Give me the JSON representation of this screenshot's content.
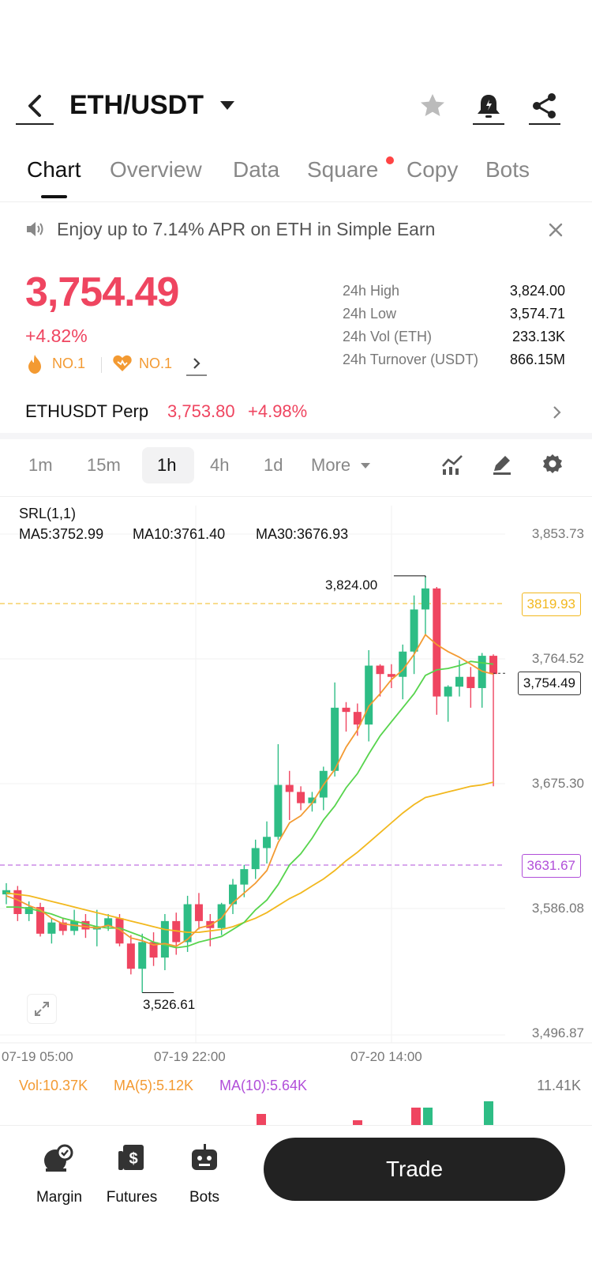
{
  "header": {
    "pair": "ETH/USDT"
  },
  "tabs": [
    {
      "label": "Chart",
      "active": true
    },
    {
      "label": "Overview"
    },
    {
      "label": "Data"
    },
    {
      "label": "Square"
    },
    {
      "label": "Copy"
    },
    {
      "label": "Bots"
    }
  ],
  "banner": {
    "text": "Enjoy up to 7.14% APR on ETH in Simple Earn"
  },
  "ticker": {
    "price": "3,754.49",
    "change": "+4.82%",
    "rank1": "NO.1",
    "rank2": "NO.1"
  },
  "stats": [
    {
      "label": "24h High",
      "value": "3,824.00"
    },
    {
      "label": "24h Low",
      "value": "3,574.71"
    },
    {
      "label": "24h Vol (ETH)",
      "value": "233.13K"
    },
    {
      "label": "24h Turnover (USDT)",
      "value": "866.15M"
    }
  ],
  "perp": {
    "name": "ETHUSDT Perp",
    "price": "3,753.80",
    "change": "+4.98%"
  },
  "timeframes": [
    {
      "label": "1m"
    },
    {
      "label": "15m"
    },
    {
      "label": "1h",
      "active": true
    },
    {
      "label": "4h"
    },
    {
      "label": "1d"
    },
    {
      "label": "More"
    }
  ],
  "indicators": {
    "srl": "SRL(1,1)",
    "ma5": "MA5:3752.99",
    "ma10": "MA10:3761.40",
    "ma30": "MA30:3676.93"
  },
  "colors": {
    "up": "#2ebd85",
    "down": "#ef4560",
    "ma5": "#f39a32",
    "ma10": "#57d44d",
    "ma30": "#f2b81e",
    "purple": "#b14fd9"
  },
  "chart_data": {
    "type": "candlestick",
    "interval": "1h",
    "y_ticks": [
      "3,853.73",
      "3,764.52",
      "3,675.30",
      "3,586.08",
      "3,496.87"
    ],
    "y_range": [
      3496.87,
      3853.73
    ],
    "x_ticks": [
      "07-19 05:00",
      "07-19 22:00",
      "07-20 14:00"
    ],
    "high_mark": "3,824.00",
    "low_mark": "3,526.61",
    "price_tag": "3,754.49",
    "level_yellow": "3819.93",
    "level_purple": "3631.67",
    "candles": [
      [
        3597,
        3605,
        3590,
        3600
      ],
      [
        3600,
        3603,
        3578,
        3583
      ],
      [
        3583,
        3592,
        3578,
        3588
      ],
      [
        3588,
        3591,
        3567,
        3569
      ],
      [
        3569,
        3580,
        3562,
        3577
      ],
      [
        3577,
        3580,
        3568,
        3571
      ],
      [
        3571,
        3586,
        3568,
        3578
      ],
      [
        3578,
        3583,
        3566,
        3572
      ],
      [
        3572,
        3586,
        3560,
        3574
      ],
      [
        3574,
        3583,
        3571,
        3580
      ],
      [
        3580,
        3583,
        3560,
        3562
      ],
      [
        3562,
        3568,
        3540,
        3544
      ],
      [
        3544,
        3569,
        3527,
        3563
      ],
      [
        3563,
        3570,
        3546,
        3552
      ],
      [
        3552,
        3583,
        3543,
        3578
      ],
      [
        3578,
        3584,
        3554,
        3563
      ],
      [
        3563,
        3596,
        3556,
        3590
      ],
      [
        3590,
        3598,
        3572,
        3578
      ],
      [
        3578,
        3583,
        3560,
        3573
      ],
      [
        3573,
        3591,
        3568,
        3590
      ],
      [
        3590,
        3608,
        3583,
        3604
      ],
      [
        3604,
        3618,
        3595,
        3615
      ],
      [
        3615,
        3636,
        3608,
        3630
      ],
      [
        3630,
        3649,
        3619,
        3638
      ],
      [
        3638,
        3704,
        3636,
        3675
      ],
      [
        3675,
        3685,
        3650,
        3670
      ],
      [
        3670,
        3674,
        3657,
        3662
      ],
      [
        3662,
        3670,
        3656,
        3666
      ],
      [
        3666,
        3688,
        3657,
        3685
      ],
      [
        3685,
        3748,
        3681,
        3730
      ],
      [
        3730,
        3734,
        3713,
        3727
      ],
      [
        3727,
        3733,
        3710,
        3718
      ],
      [
        3718,
        3771,
        3706,
        3760
      ],
      [
        3760,
        3761,
        3738,
        3754
      ],
      [
        3754,
        3761,
        3744,
        3752
      ],
      [
        3752,
        3775,
        3736,
        3770
      ],
      [
        3770,
        3810,
        3754,
        3800
      ],
      [
        3800,
        3824,
        3782,
        3815
      ],
      [
        3815,
        3816,
        3725,
        3738
      ],
      [
        3738,
        3746,
        3720,
        3745
      ],
      [
        3745,
        3764,
        3738,
        3752
      ],
      [
        3752,
        3759,
        3730,
        3744
      ],
      [
        3744,
        3769,
        3730,
        3767
      ],
      [
        3767,
        3768,
        3674,
        3754
      ]
    ],
    "ma5": [
      3596,
      3593,
      3589,
      3586,
      3580,
      3576,
      3575,
      3574,
      3573,
      3575,
      3572,
      3566,
      3564,
      3561,
      3562,
      3560,
      3565,
      3573,
      3575,
      3580,
      3591,
      3598,
      3605,
      3614,
      3634,
      3648,
      3653,
      3662,
      3675,
      3686,
      3702,
      3714,
      3731,
      3740,
      3750,
      3757,
      3768,
      3782,
      3775,
      3770,
      3766,
      3761,
      3756,
      3754
    ],
    "ma10": [
      3588,
      3588,
      3587,
      3585,
      3583,
      3580,
      3578,
      3576,
      3574,
      3573,
      3573,
      3570,
      3567,
      3563,
      3561,
      3559,
      3560,
      3563,
      3565,
      3567,
      3572,
      3577,
      3586,
      3593,
      3604,
      3618,
      3626,
      3637,
      3650,
      3660,
      3673,
      3683,
      3697,
      3710,
      3720,
      3730,
      3740,
      3753,
      3757,
      3758,
      3760,
      3763,
      3762,
      3761
    ],
    "ma30": [
      3598,
      3597,
      3596,
      3594,
      3592,
      3590,
      3588,
      3586,
      3584,
      3582,
      3580,
      3578,
      3576,
      3574,
      3572,
      3571,
      3570,
      3570,
      3571,
      3572,
      3574,
      3577,
      3580,
      3584,
      3589,
      3594,
      3598,
      3603,
      3608,
      3614,
      3621,
      3627,
      3634,
      3641,
      3648,
      3655,
      3661,
      3666,
      3668,
      3670,
      3672,
      3674,
      3675,
      3677
    ]
  },
  "volume": {
    "vol": "Vol:10.37K",
    "ma5": "MA(5):5.12K",
    "ma10": "MA(10):5.64K",
    "max": "11.41K"
  },
  "bottom": {
    "margin": "Margin",
    "futures": "Futures",
    "bots": "Bots",
    "trade": "Trade"
  }
}
